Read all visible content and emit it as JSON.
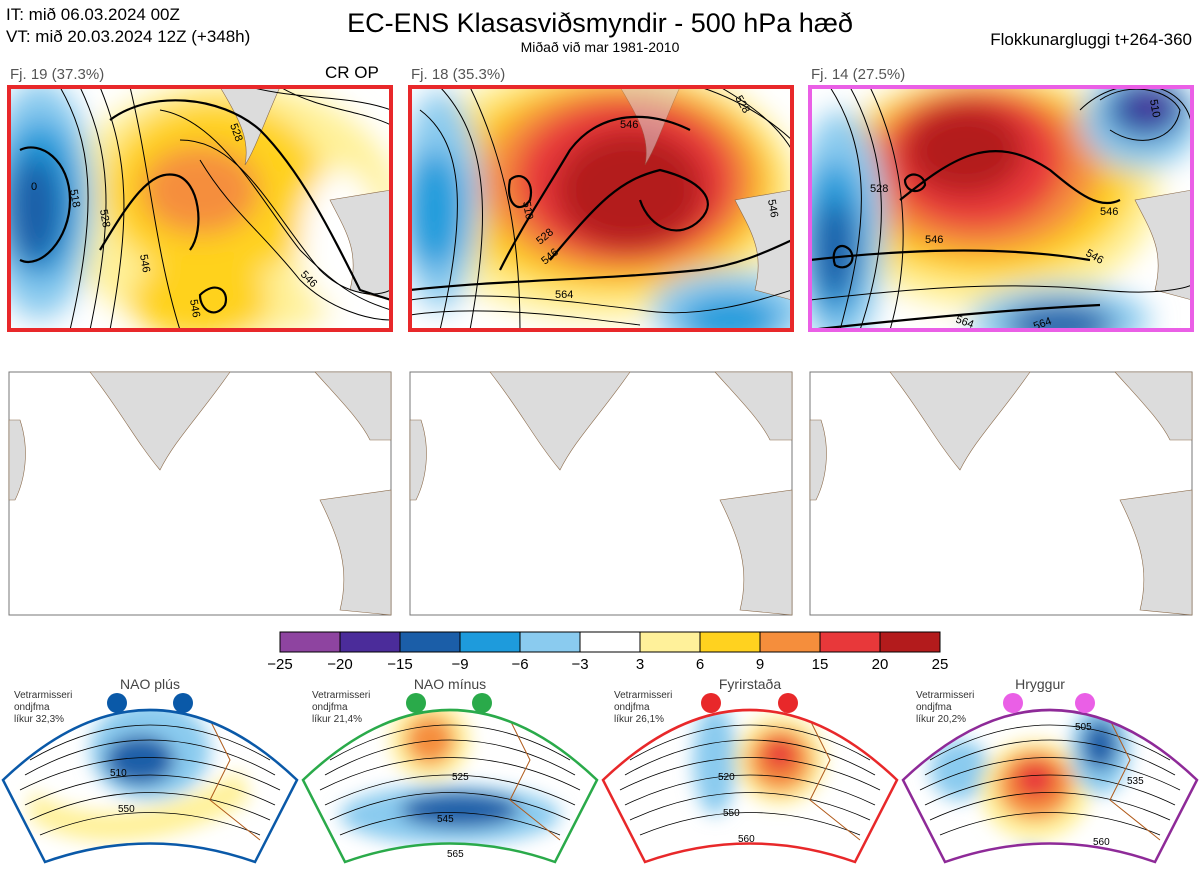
{
  "header": {
    "it_line": "IT: mið 06.03.2024 00Z",
    "vt_line": "VT: mið 20.03.2024 12Z  (+348h)",
    "title": "EC-ENS Klasasviðsmyndir - 500 hPa hæð",
    "subtitle": "Miðað við mar 1981-2010",
    "window": "Flokkunargluggi t+264-360"
  },
  "panels": [
    {
      "label": "Fj. 19 (37.3%)",
      "tag": "CR OP",
      "border_color": "#e8282a",
      "contours": [
        "528",
        "546",
        "528",
        "546",
        "546",
        "518",
        "0"
      ]
    },
    {
      "label": "Fj. 18 (35.3%)",
      "tag": "",
      "border_color": "#e8282a",
      "contours": [
        "546",
        "528",
        "546",
        "510",
        "528",
        "546",
        "564"
      ]
    },
    {
      "label": "Fj. 14 (27.5%)",
      "tag": "",
      "border_color": "#ea5fe6",
      "contours": [
        "528",
        "546",
        "546",
        "546",
        "564",
        "564",
        "510"
      ]
    }
  ],
  "colorbar": {
    "colors": [
      "#8e44a0",
      "#4b2c9a",
      "#1b5ea8",
      "#1e9bdc",
      "#8acbef",
      "#ffffff",
      "#fff19a",
      "#ffd21f",
      "#f58e3c",
      "#e8383a",
      "#b31b1c"
    ],
    "ticks": [
      "−25",
      "−20",
      "−15",
      "−9",
      "−6",
      "−3",
      "3",
      "6",
      "9",
      "15",
      "20",
      "25"
    ]
  },
  "regimes": [
    {
      "name": "NAO plús",
      "line1": "Vetrarmisseri",
      "line2": "ondjfma",
      "line3": "líkur 32,3%",
      "color": "#0a59a8",
      "contour_labels": [
        "510",
        "550"
      ]
    },
    {
      "name": "NAO mínus",
      "line1": "Vetrarmisseri",
      "line2": "ondjfma",
      "line3": "líkur 21,4%",
      "color": "#2aaa4a",
      "contour_labels": [
        "525",
        "545",
        "565"
      ]
    },
    {
      "name": "Fyrirstaða",
      "line1": "Vetrarmisseri",
      "line2": "ondjfma",
      "line3": "líkur 26,1%",
      "color": "#e8282a",
      "contour_labels": [
        "520",
        "550",
        "560"
      ]
    },
    {
      "name": "Hryggur",
      "line1": "Vetrarmisseri",
      "line2": "ondjfma",
      "line3": "líkur 20,2%",
      "color": "#ea5fe6",
      "contour_labels": [
        "505",
        "535",
        "560"
      ]
    }
  ]
}
